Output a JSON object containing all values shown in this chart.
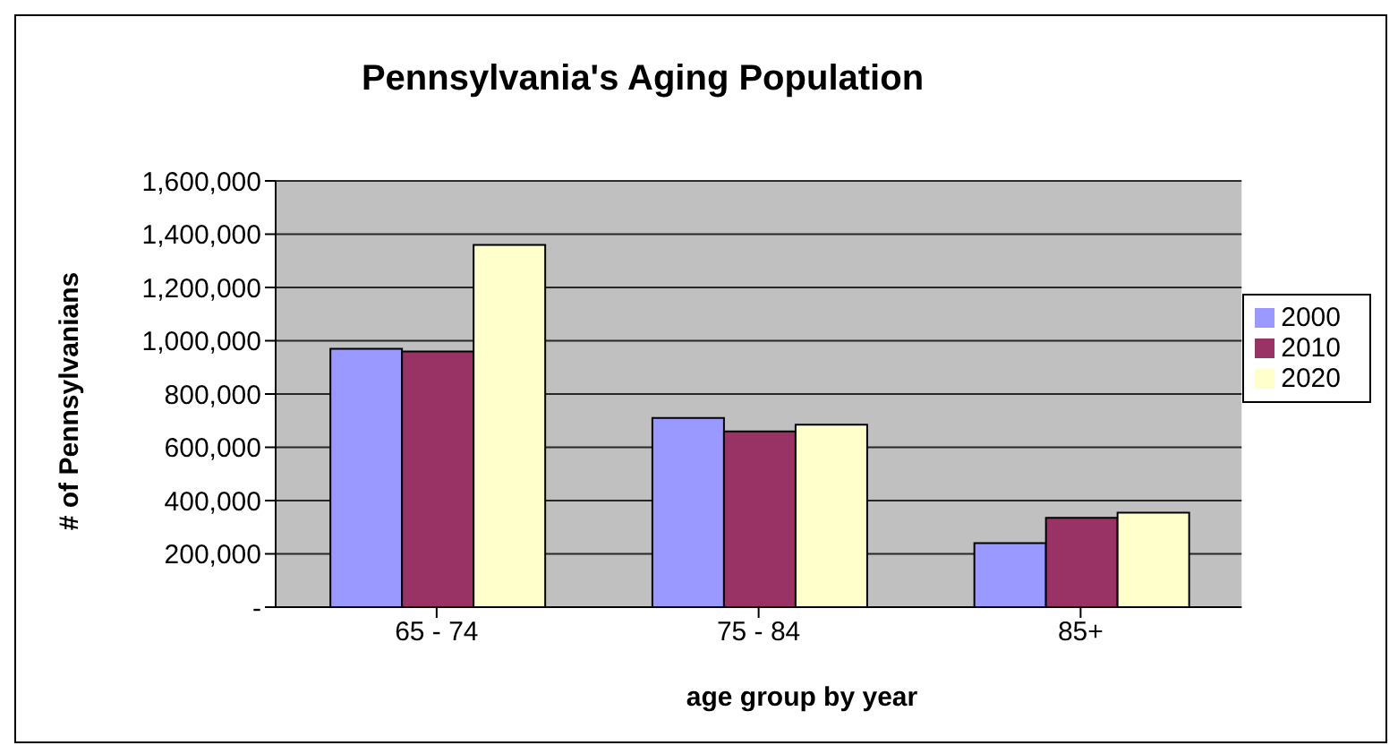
{
  "chart_data": {
    "type": "bar",
    "title": "Pennsylvania's Aging Population",
    "xlabel": "age group by year",
    "ylabel": "# of Pennsylvanians",
    "categories": [
      "65 - 74",
      "75 - 84",
      "85+"
    ],
    "series": [
      {
        "name": "2000",
        "color": "#9999ff",
        "values": [
          970000,
          710000,
          240000
        ]
      },
      {
        "name": "2010",
        "color": "#993366",
        "values": [
          960000,
          660000,
          335000
        ]
      },
      {
        "name": "2020",
        "color": "#ffffcc",
        "values": [
          1360000,
          685000,
          355000
        ]
      }
    ],
    "ylim": [
      0,
      1600000
    ],
    "yticks": [
      {
        "value": 0,
        "label": "-"
      },
      {
        "value": 200000,
        "label": "200,000"
      },
      {
        "value": 400000,
        "label": "400,000"
      },
      {
        "value": 600000,
        "label": "600,000"
      },
      {
        "value": 800000,
        "label": "800,000"
      },
      {
        "value": 1000000,
        "label": "1,000,000"
      },
      {
        "value": 1200000,
        "label": "1,200,000"
      },
      {
        "value": 1400000,
        "label": "1,400,000"
      },
      {
        "value": 1600000,
        "label": "1,600,000"
      }
    ],
    "grid": "y",
    "legend": "right"
  }
}
